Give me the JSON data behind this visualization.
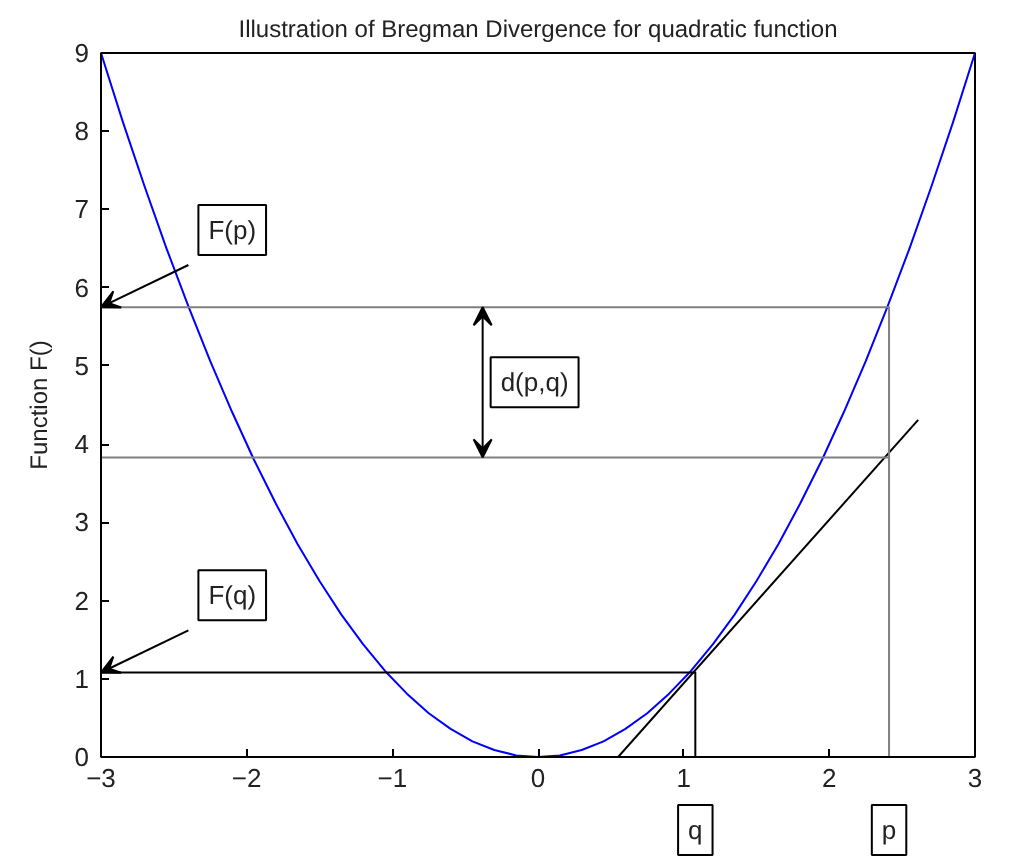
{
  "chart_data": {
    "type": "line",
    "title": "Illustration of Bregman Divergence for quadratic function",
    "ylabel": "Function F()",
    "xlim": [
      -3,
      3
    ],
    "ylim": [
      0,
      9
    ],
    "xticks": [
      -3,
      -2,
      -1,
      0,
      1,
      2,
      3
    ],
    "yticks": [
      0,
      1,
      2,
      3,
      4,
      5,
      6,
      7,
      8,
      9
    ],
    "grid": false,
    "series": [
      {
        "color": "#0000ff",
        "x": [
          -3,
          -2.85,
          -2.7,
          -2.55,
          -2.4,
          -2.25,
          -2.1,
          -1.95,
          -1.8,
          -1.65,
          -1.5,
          -1.35,
          -1.2,
          -1.05,
          -0.9,
          -0.75,
          -0.6,
          -0.45,
          -0.3,
          -0.15,
          0,
          0.15,
          0.3,
          0.45,
          0.6,
          0.75,
          0.9,
          1.05,
          1.2,
          1.35,
          1.5,
          1.65,
          1.8,
          1.95,
          2.1,
          2.25,
          2.4,
          2.55,
          2.7,
          2.85,
          3
        ],
        "values": [
          9,
          8.12,
          7.29,
          6.5,
          5.76,
          5.06,
          4.41,
          3.8,
          3.24,
          2.72,
          2.25,
          1.82,
          1.44,
          1.1,
          0.81,
          0.56,
          0.36,
          0.2,
          0.09,
          0.02,
          0,
          0.02,
          0.09,
          0.2,
          0.36,
          0.56,
          0.81,
          1.1,
          1.44,
          1.82,
          2.25,
          2.72,
          3.24,
          3.8,
          4.41,
          5.06,
          5.76,
          6.5,
          7.29,
          8.12,
          9
        ]
      },
      {
        "color": "#000000",
        "x": [
          0.55,
          2.61
        ],
        "values": [
          0,
          4.31
        ]
      },
      {
        "color": "#808080",
        "x": [
          -3,
          2.41,
          2.41
        ],
        "values": [
          5.75,
          5.75,
          0
        ]
      },
      {
        "color": "#808080",
        "x": [
          -3,
          2.41
        ],
        "values": [
          3.83,
          3.83
        ]
      },
      {
        "color": "#000000",
        "x": [
          -3,
          1.08,
          1.08
        ],
        "values": [
          1.08,
          1.08,
          0
        ]
      }
    ],
    "annotations": [
      {
        "text": "F(p)",
        "x": -3,
        "y": 5.75
      },
      {
        "text": "d(p,q)",
        "x": -0.38,
        "y": 5.75
      },
      {
        "text": "F(q)",
        "x": -3,
        "y": 1.08
      },
      {
        "text": "q",
        "x": 1.08,
        "y": 0
      },
      {
        "text": "p",
        "x": 2.41,
        "y": 0
      }
    ]
  }
}
